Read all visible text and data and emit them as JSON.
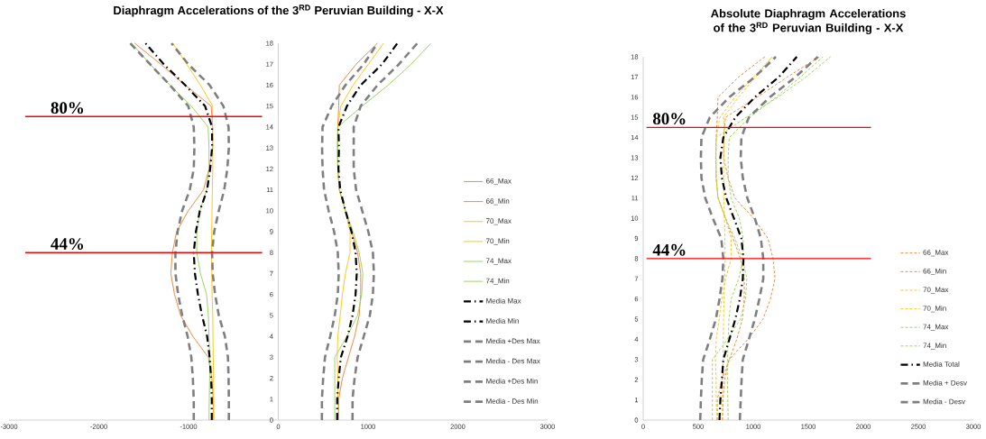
{
  "chart_data": [
    {
      "type": "line",
      "title": "Diaphragm Accelerations of the 3$^{RD}$ Peruvian Building - X-X",
      "xlim": [
        -3000,
        3000
      ],
      "xticks": [
        -3000,
        -2000,
        -1000,
        0,
        1000,
        2000,
        3000
      ],
      "ylim": [
        0,
        18
      ],
      "yticks": [
        0,
        1,
        2,
        3,
        4,
        5,
        6,
        7,
        8,
        9,
        10,
        11,
        12,
        13,
        14,
        15,
        16,
        17,
        18
      ],
      "legend": "bottom right",
      "ref_lines": [
        {
          "axis": "y",
          "value": 14.5,
          "color": "#ff0000"
        },
        {
          "axis": "y",
          "value": 8,
          "color": "#ff0000"
        }
      ],
      "annotations": [
        {
          "text": "80%",
          "y": 14.5
        },
        {
          "text": "44%",
          "y": 8
        }
      ],
      "series": [
        {
          "name": "66_Max",
          "color": "#ed7d31",
          "line_style": "solid",
          "x": [
            673,
            673,
            714,
            782,
            850,
            901,
            918,
            918,
            884,
            816,
            748,
            680,
            663,
            660,
            663,
            673,
            680,
            867,
            1105
          ],
          "values": [
            0,
            1,
            2,
            3,
            4,
            5,
            6,
            7,
            8,
            9,
            10,
            11,
            12,
            13,
            14,
            15,
            16,
            17,
            18
          ]
        },
        {
          "name": "66_Min",
          "color": "#ed7d31",
          "line_style": "solid",
          "x": [
            -720,
            -725,
            -740,
            -780,
            -952,
            -1088,
            -1156,
            -1197,
            -1180,
            -1133,
            -1003,
            -833,
            -772,
            -731,
            -731,
            -748,
            -1037,
            -1310,
            -1600
          ],
          "values": [
            0,
            1,
            2,
            3,
            4,
            5,
            6,
            7,
            8,
            9,
            10,
            11,
            12,
            13,
            14,
            15,
            16,
            17,
            18
          ]
        },
        {
          "name": "70_Max",
          "color": "#ffc000",
          "line_style": "solid",
          "x": [
            673,
            663,
            663,
            656,
            663,
            690,
            714,
            748,
            799,
            799,
            748,
            680,
            663,
            658,
            663,
            697,
            833,
            1003,
            1173
          ],
          "values": [
            0,
            1,
            2,
            3,
            4,
            5,
            6,
            7,
            8,
            9,
            10,
            11,
            12,
            13,
            14,
            15,
            16,
            17,
            18
          ]
        },
        {
          "name": "70_Min",
          "color": "#ffc000",
          "line_style": "solid",
          "x": [
            -720,
            -720,
            -722,
            -725,
            -728,
            -730,
            -738,
            -740,
            -745,
            -742,
            -738,
            -735,
            -730,
            -730,
            -735,
            -731,
            -867,
            -1020,
            -1173
          ],
          "values": [
            0,
            1,
            2,
            3,
            4,
            5,
            6,
            7,
            8,
            9,
            10,
            11,
            12,
            13,
            14,
            15,
            16,
            17,
            18
          ]
        },
        {
          "name": "74_Max",
          "color": "#92d050",
          "line_style": "solid",
          "x": [
            629,
            629,
            629,
            629,
            765,
            884,
            929,
            942,
            901,
            833,
            748,
            680,
            663,
            663,
            663,
            935,
            1224,
            1480,
            1701
          ],
          "values": [
            0,
            1,
            2,
            3,
            4,
            5,
            6,
            7,
            8,
            9,
            10,
            11,
            12,
            13,
            14,
            15,
            16,
            17,
            18
          ]
        },
        {
          "name": "74_Min",
          "color": "#92d050",
          "line_style": "solid",
          "x": [
            -772,
            -769,
            -765,
            -765,
            -772,
            -779,
            -799,
            -867,
            -908,
            -908,
            -874,
            -799,
            -772,
            -772,
            -782,
            -969,
            -1207,
            -1429,
            -1633
          ],
          "values": [
            0,
            1,
            2,
            3,
            4,
            5,
            6,
            7,
            8,
            9,
            10,
            11,
            12,
            13,
            14,
            15,
            16,
            17,
            18
          ]
        },
        {
          "name": "Media Max",
          "color": "#000000",
          "line_style": "dashdot",
          "x": [
            656,
            656,
            673,
            697,
            772,
            827,
            861,
            874,
            861,
            816,
            748,
            690,
            670,
            676,
            670,
            765,
            918,
            1156,
            1327
          ],
          "values": [
            0,
            1,
            2,
            3,
            4,
            5,
            6,
            7,
            8,
            9,
            10,
            11,
            12,
            13,
            14,
            15,
            16,
            17,
            18
          ]
        },
        {
          "name": "Media Min",
          "color": "#000000",
          "line_style": "dashdot",
          "x": [
            -741,
            -741,
            -748,
            -765,
            -793,
            -850,
            -895,
            -929,
            -942,
            -918,
            -874,
            -793,
            -759,
            -738,
            -738,
            -816,
            -1037,
            -1276,
            -1480
          ],
          "values": [
            0,
            1,
            2,
            3,
            4,
            5,
            6,
            7,
            8,
            9,
            10,
            11,
            12,
            13,
            14,
            15,
            16,
            17,
            18
          ]
        },
        {
          "name": "Media +Des Max",
          "color": "#7f7f7f",
          "line_style": "dashed",
          "x": [
            827,
            827,
            850,
            884,
            952,
            1020,
            1054,
            1065,
            1054,
            1003,
            935,
            867,
            840,
            840,
            840,
            918,
            1105,
            1344,
            1548
          ],
          "values": [
            0,
            1,
            2,
            3,
            4,
            5,
            6,
            7,
            8,
            9,
            10,
            11,
            12,
            13,
            14,
            15,
            16,
            17,
            18
          ]
        },
        {
          "name": "Media - Des Max",
          "color": "#7f7f7f",
          "line_style": "dashed",
          "x": [
            486,
            486,
            500,
            520,
            578,
            629,
            663,
            673,
            663,
            622,
            561,
            510,
            493,
            488,
            493,
            595,
            748,
            952,
            1105
          ],
          "values": [
            0,
            1,
            2,
            3,
            4,
            5,
            6,
            7,
            8,
            9,
            10,
            11,
            12,
            13,
            14,
            15,
            16,
            17,
            18
          ]
        },
        {
          "name": "Media +Des Min",
          "color": "#7f7f7f",
          "line_style": "dashed",
          "x": [
            -551,
            -551,
            -554,
            -561,
            -595,
            -663,
            -704,
            -731,
            -738,
            -714,
            -663,
            -602,
            -568,
            -551,
            -554,
            -612,
            -765,
            -1003,
            -1190
          ],
          "values": [
            0,
            1,
            2,
            3,
            4,
            5,
            6,
            7,
            8,
            9,
            10,
            11,
            12,
            13,
            14,
            15,
            16,
            17,
            18
          ]
        },
        {
          "name": "Media - Des Min",
          "color": "#7f7f7f",
          "line_style": "dashed",
          "x": [
            -942,
            -942,
            -952,
            -969,
            -1010,
            -1071,
            -1116,
            -1146,
            -1146,
            -1122,
            -1071,
            -986,
            -942,
            -935,
            -942,
            -1003,
            -1207,
            -1429,
            -1650
          ],
          "values": [
            0,
            1,
            2,
            3,
            4,
            5,
            6,
            7,
            8,
            9,
            10,
            11,
            12,
            13,
            14,
            15,
            16,
            17,
            18
          ]
        }
      ]
    },
    {
      "type": "line",
      "title": "Absolute Diaphragm Accelerations of the 3$^{RD}$ Peruvian Building - X-X",
      "xlim": [
        0,
        3000
      ],
      "xticks": [
        0,
        500,
        1000,
        1500,
        2000,
        2500,
        3000
      ],
      "ylim": [
        0,
        18
      ],
      "yticks": [
        0,
        1,
        2,
        3,
        4,
        5,
        6,
        7,
        8,
        9,
        10,
        11,
        12,
        13,
        14,
        15,
        16,
        17,
        18
      ],
      "legend": "bottom right",
      "ref_lines": [
        {
          "axis": "y",
          "value": 14.5,
          "color": "#ff0000"
        },
        {
          "axis": "y",
          "value": 8,
          "color": "#ff0000"
        }
      ],
      "annotations": [
        {
          "text": "80%",
          "y": 14.5
        },
        {
          "text": "44%",
          "y": 8
        }
      ],
      "series": [
        {
          "name": "66_Max",
          "color": "#ed7d31",
          "line_style": "dashed",
          "x": [
            673,
            673,
            714,
            782,
            850,
            901,
            918,
            918,
            884,
            816,
            748,
            680,
            663,
            660,
            663,
            673,
            680,
            867,
            1105
          ],
          "values": [
            0,
            1,
            2,
            3,
            4,
            5,
            6,
            7,
            8,
            9,
            10,
            11,
            12,
            13,
            14,
            15,
            16,
            17,
            18
          ]
        },
        {
          "name": "66_Min",
          "color": "#ed7d31",
          "line_style": "dashed",
          "x": [
            720,
            725,
            740,
            780,
            952,
            1088,
            1156,
            1197,
            1180,
            1133,
            1003,
            833,
            772,
            731,
            731,
            748,
            1037,
            1310,
            1600
          ],
          "values": [
            0,
            1,
            2,
            3,
            4,
            5,
            6,
            7,
            8,
            9,
            10,
            11,
            12,
            13,
            14,
            15,
            16,
            17,
            18
          ]
        },
        {
          "name": "70_Max",
          "color": "#ffc000",
          "line_style": "dashed",
          "x": [
            673,
            663,
            663,
            656,
            663,
            690,
            714,
            748,
            799,
            799,
            748,
            680,
            663,
            658,
            663,
            697,
            833,
            1003,
            1173
          ],
          "values": [
            0,
            1,
            2,
            3,
            4,
            5,
            6,
            7,
            8,
            9,
            10,
            11,
            12,
            13,
            14,
            15,
            16,
            17,
            18
          ]
        },
        {
          "name": "70_Min",
          "color": "#ffc000",
          "line_style": "dashed",
          "x": [
            720,
            720,
            722,
            725,
            728,
            730,
            735,
            740,
            745,
            742,
            738,
            735,
            730,
            730,
            735,
            731,
            867,
            1020,
            1173
          ],
          "values": [
            0,
            1,
            2,
            3,
            4,
            5,
            6,
            7,
            8,
            9,
            10,
            11,
            12,
            13,
            14,
            15,
            16,
            17,
            18
          ]
        },
        {
          "name": "74_Max",
          "color": "#92d050",
          "line_style": "dashed",
          "x": [
            629,
            629,
            629,
            629,
            765,
            884,
            929,
            942,
            901,
            833,
            748,
            680,
            663,
            663,
            663,
            935,
            1224,
            1480,
            1701
          ],
          "values": [
            0,
            1,
            2,
            3,
            4,
            5,
            6,
            7,
            8,
            9,
            10,
            11,
            12,
            13,
            14,
            15,
            16,
            17,
            18
          ]
        },
        {
          "name": "74_Min",
          "color": "#92d050",
          "line_style": "dashed",
          "x": [
            772,
            769,
            765,
            765,
            772,
            779,
            799,
            867,
            908,
            908,
            874,
            799,
            772,
            772,
            782,
            969,
            1207,
            1429,
            1633
          ],
          "values": [
            0,
            1,
            2,
            3,
            4,
            5,
            6,
            7,
            8,
            9,
            10,
            11,
            12,
            13,
            14,
            15,
            16,
            17,
            18
          ]
        },
        {
          "name": "Media Total",
          "color": "#000000",
          "line_style": "dashdot",
          "x": [
            693,
            701,
            715,
            728,
            783,
            837,
            878,
            905,
            911,
            892,
            824,
            755,
            715,
            701,
            728,
            837,
            1014,
            1233,
            1396
          ],
          "values": [
            0,
            1,
            2,
            3,
            4,
            5,
            6,
            7,
            8,
            9,
            10,
            11,
            12,
            13,
            14,
            15,
            16,
            17,
            18
          ]
        },
        {
          "name": "Media + Desv",
          "color": "#7f7f7f",
          "line_style": "dashed",
          "x": [
            878,
            886,
            894,
            905,
            960,
            1014,
            1055,
            1091,
            1091,
            1069,
            1014,
            946,
            905,
            886,
            892,
            960,
            1151,
            1383,
            1587
          ],
          "values": [
            0,
            1,
            2,
            3,
            4,
            5,
            6,
            7,
            8,
            9,
            10,
            11,
            12,
            13,
            14,
            15,
            16,
            17,
            18
          ]
        },
        {
          "name": "Media - Desv",
          "color": "#7f7f7f",
          "line_style": "dashed",
          "x": [
            518,
            524,
            532,
            545,
            605,
            660,
            693,
            720,
            728,
            709,
            633,
            564,
            529,
            524,
            529,
            605,
            783,
            1014,
            1205
          ],
          "values": [
            0,
            1,
            2,
            3,
            4,
            5,
            6,
            7,
            8,
            9,
            10,
            11,
            12,
            13,
            14,
            15,
            16,
            17,
            18
          ]
        }
      ]
    }
  ]
}
